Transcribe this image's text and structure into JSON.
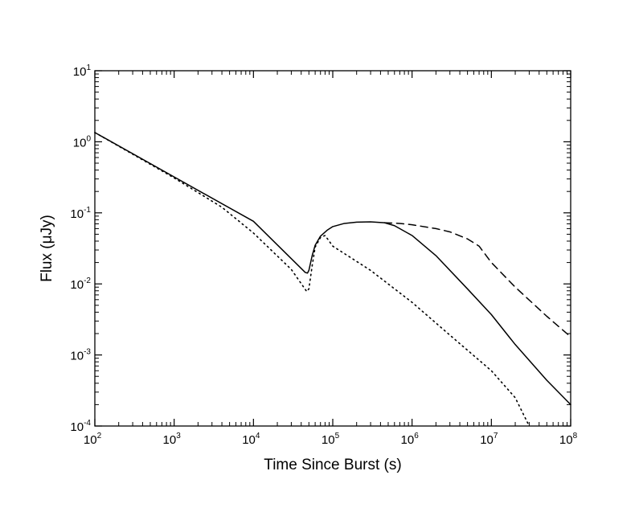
{
  "chart_data": {
    "type": "line",
    "title": "",
    "xlabel": "Time Since Burst (s)",
    "ylabel": "Flux (μJy)",
    "xscale": "log",
    "yscale": "log",
    "xlim": [
      100,
      100000000
    ],
    "ylim": [
      0.0001,
      10
    ],
    "grid": false,
    "legend": "none",
    "x_ticks": [
      {
        "base": "10",
        "exp": "2",
        "value": 100
      },
      {
        "base": "10",
        "exp": "3",
        "value": 1000
      },
      {
        "base": "10",
        "exp": "4",
        "value": 10000
      },
      {
        "base": "10",
        "exp": "5",
        "value": 100000
      },
      {
        "base": "10",
        "exp": "6",
        "value": 1000000
      },
      {
        "base": "10",
        "exp": "7",
        "value": 10000000
      },
      {
        "base": "10",
        "exp": "8",
        "value": 100000000
      }
    ],
    "y_ticks": [
      {
        "base": "10",
        "exp": "-4",
        "value": 0.0001
      },
      {
        "base": "10",
        "exp": "-3",
        "value": 0.001
      },
      {
        "base": "10",
        "exp": "-2",
        "value": 0.01
      },
      {
        "base": "10",
        "exp": "-1",
        "value": 0.1
      },
      {
        "base": "10",
        "exp": "0",
        "value": 1
      },
      {
        "base": "10",
        "exp": "1",
        "value": 10
      }
    ],
    "series": [
      {
        "style": "solid",
        "color": "#000000",
        "points": [
          [
            100,
            1.35
          ],
          [
            1000,
            0.32
          ],
          [
            10000,
            0.076
          ],
          [
            45000,
            0.0145
          ],
          [
            48000,
            0.0142
          ],
          [
            50000,
            0.0155
          ],
          [
            55000,
            0.025
          ],
          [
            60000,
            0.035
          ],
          [
            70000,
            0.047
          ],
          [
            85000,
            0.057
          ],
          [
            100000,
            0.064
          ],
          [
            140000,
            0.071
          ],
          [
            200000,
            0.074
          ],
          [
            300000,
            0.0748
          ],
          [
            450000,
            0.0725
          ],
          [
            600000,
            0.066
          ],
          [
            1000000,
            0.048
          ],
          [
            2000000,
            0.025
          ],
          [
            5000000,
            0.0085
          ],
          [
            10000000,
            0.0037
          ],
          [
            20000000,
            0.0014
          ],
          [
            50000000,
            0.00044
          ],
          [
            100000000,
            0.0002
          ]
        ]
      },
      {
        "style": "dashed",
        "color": "#000000",
        "points": [
          [
            450000,
            0.0725
          ],
          [
            700000,
            0.071
          ],
          [
            1000000,
            0.068
          ],
          [
            2000000,
            0.06
          ],
          [
            3000000,
            0.054
          ],
          [
            5000000,
            0.043
          ],
          [
            7000000,
            0.034
          ],
          [
            10000000,
            0.02
          ],
          [
            20000000,
            0.009
          ],
          [
            50000000,
            0.0035
          ],
          [
            100000000,
            0.0018
          ]
        ]
      },
      {
        "style": "dotted",
        "color": "#000000",
        "points": [
          [
            100,
            1.35
          ],
          [
            1000,
            0.31
          ],
          [
            4000,
            0.12
          ],
          [
            10000,
            0.052
          ],
          [
            30000,
            0.016
          ],
          [
            47000,
            0.0078
          ],
          [
            50000,
            0.0085
          ],
          [
            55000,
            0.018
          ],
          [
            60000,
            0.033
          ],
          [
            70000,
            0.045
          ],
          [
            80000,
            0.048
          ],
          [
            100000,
            0.034
          ],
          [
            300000,
            0.0155
          ],
          [
            1000000,
            0.0055
          ],
          [
            3000000,
            0.0019
          ],
          [
            10000000,
            0.0006
          ],
          [
            20000000,
            0.00025
          ],
          [
            30000000,
            0.0001
          ]
        ]
      }
    ]
  }
}
